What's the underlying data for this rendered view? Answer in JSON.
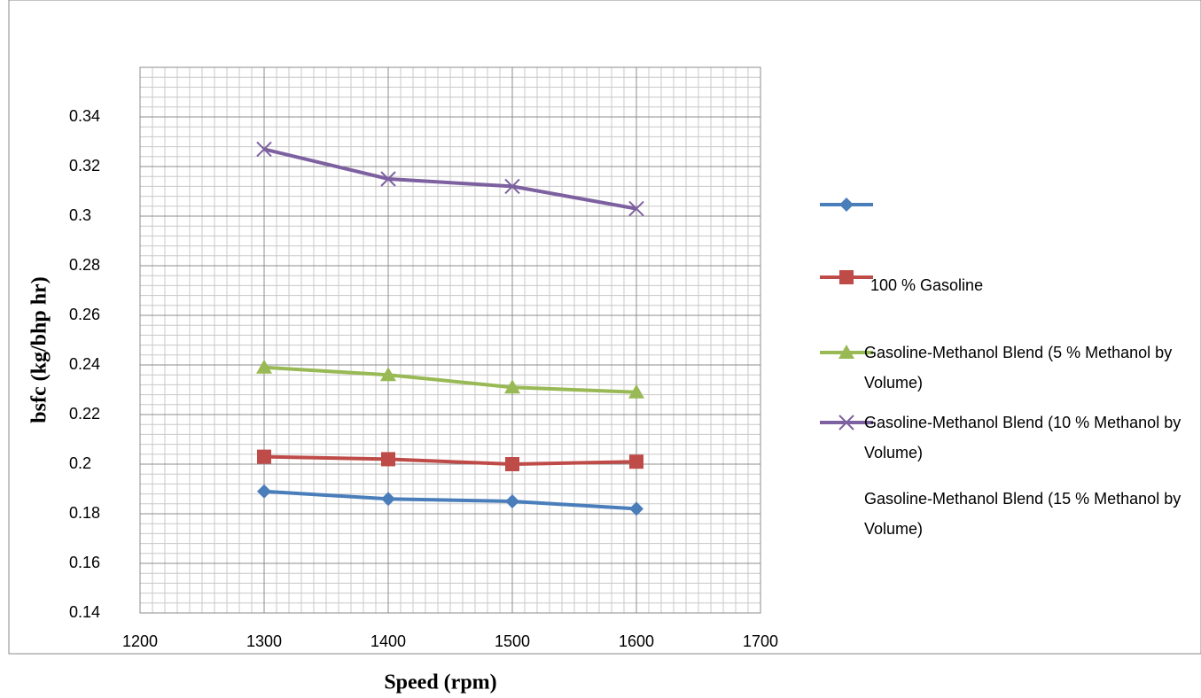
{
  "chart_data": {
    "type": "line",
    "x_label": "Speed (rpm)",
    "y_label": "bsfc (kg/bhp hr)",
    "x": [
      1300,
      1400,
      1500,
      1600
    ],
    "xlim": [
      1200,
      1700
    ],
    "xticks": [
      1200,
      1300,
      1400,
      1500,
      1600,
      1700
    ],
    "ylim": [
      0.14,
      0.36
    ],
    "yticks": [
      0.14,
      0.16,
      0.18,
      0.2,
      0.22,
      0.24,
      0.26,
      0.28,
      0.3,
      0.32,
      0.34
    ],
    "grid": true,
    "series": [
      {
        "color": "#4a7ebb",
        "marker": "diamond",
        "values": [
          0.189,
          0.186,
          0.185,
          0.182
        ]
      },
      {
        "name": "100 % Gasoline",
        "color": "#be4b48",
        "marker": "square",
        "values": [
          0.203,
          0.202,
          0.2,
          0.201
        ]
      },
      {
        "name": "Gasoline-Methanol Blend (5 % Methanol by Volume)",
        "color": "#98b954",
        "marker": "triangle",
        "values": [
          0.239,
          0.236,
          0.231,
          0.229
        ]
      },
      {
        "name": "Gasoline-Methanol Blend (10 % Methanol by Volume)",
        "color": "#7d60a0",
        "marker": "x",
        "values": [
          0.327,
          0.315,
          0.312,
          0.303
        ]
      }
    ],
    "extra_legend_entry": "Gasoline-Methanol Blend (15 % Methanol by Volume)"
  }
}
